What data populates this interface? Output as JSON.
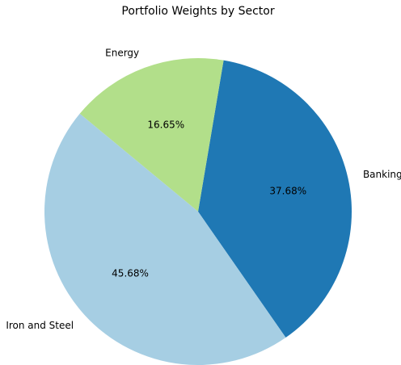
{
  "chart_data": {
    "type": "pie",
    "title": "Portfolio Weights by Sector",
    "categories": [
      "Banking",
      "Energy",
      "Iron and Steel"
    ],
    "values": [
      37.68,
      16.65,
      45.68
    ],
    "value_labels": [
      "37.68%",
      "16.65%",
      "45.68%"
    ],
    "colors": [
      "#1f78b4",
      "#b2df8a",
      "#a6cee3"
    ]
  }
}
